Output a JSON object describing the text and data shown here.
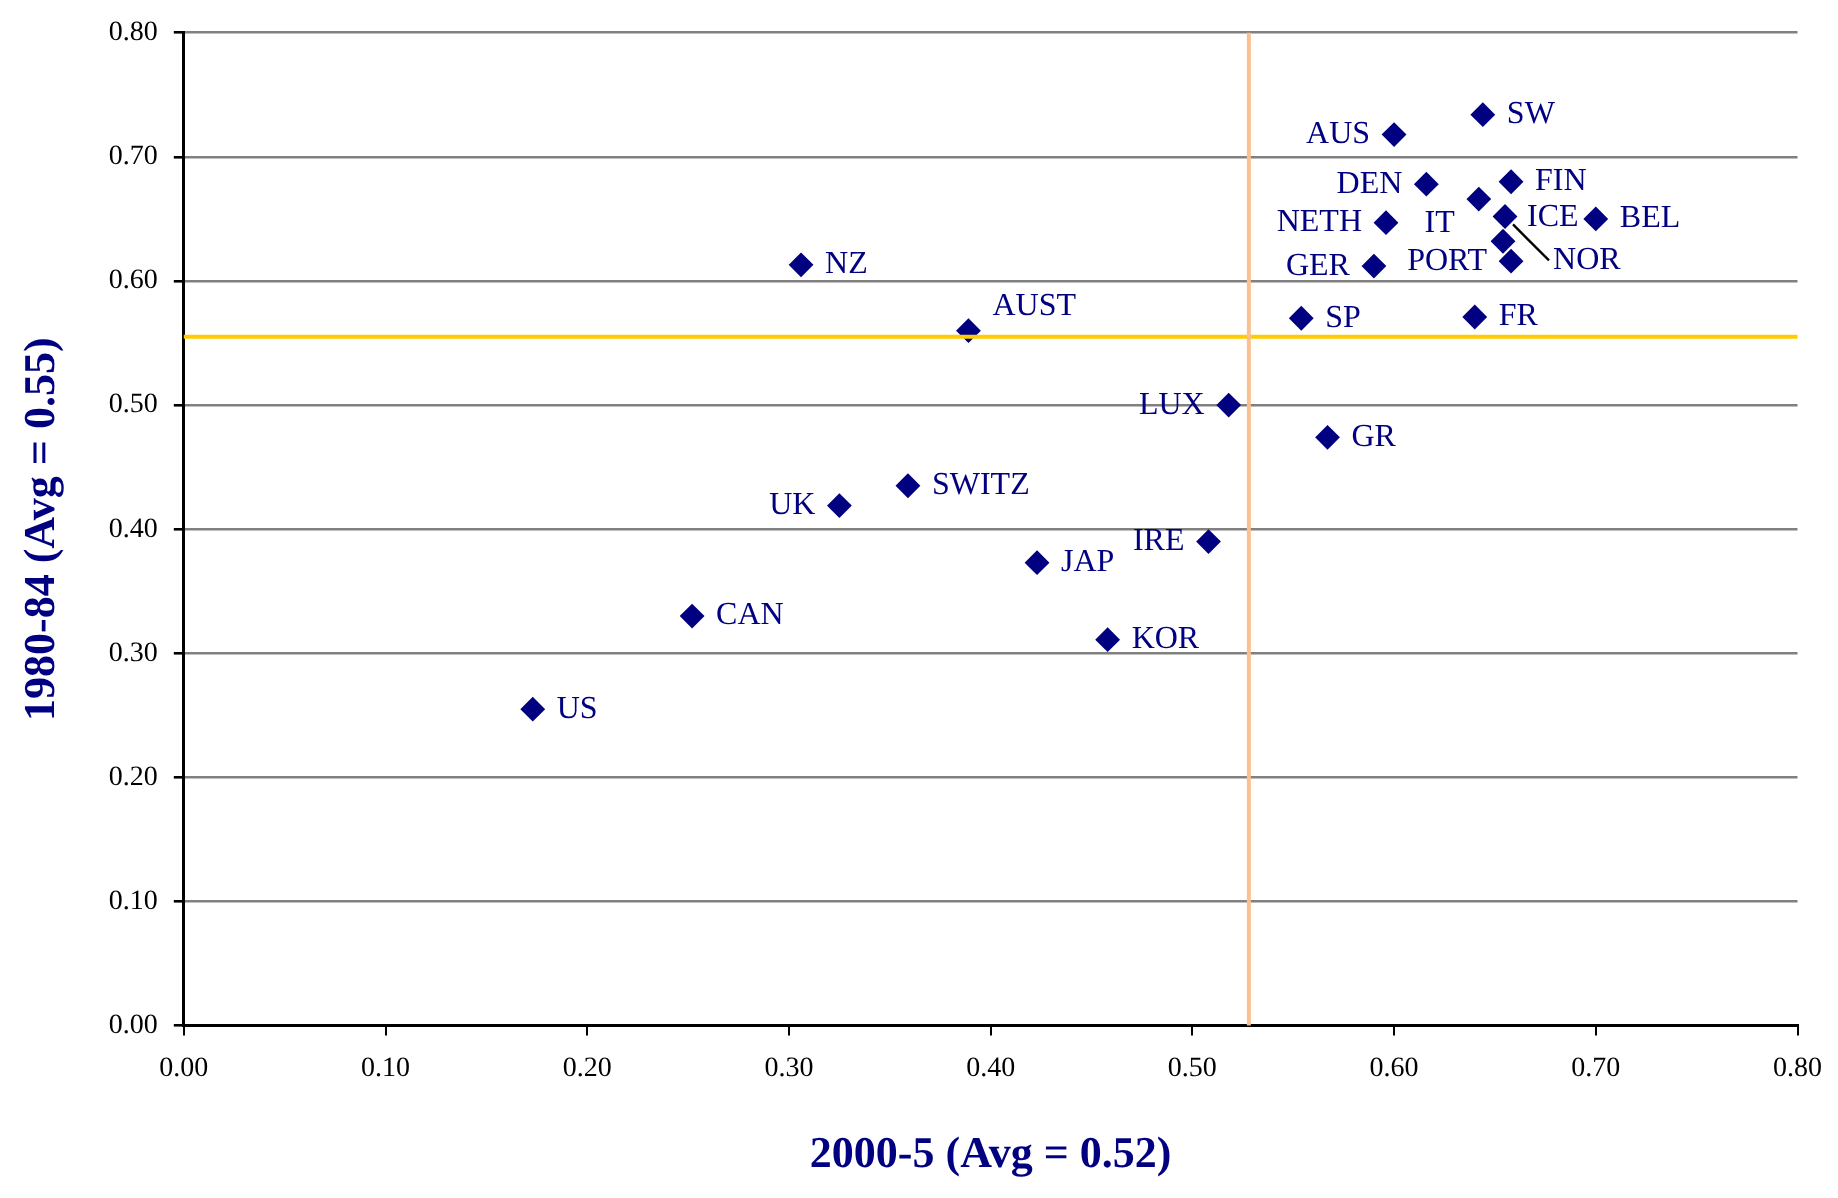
{
  "chart_data": {
    "type": "scatter",
    "xlabel": "2000-5 (Avg = 0.52)",
    "ylabel": "1980-84 (Avg = 0.55)",
    "series": [
      {
        "color": "#000080",
        "x": [
          0.6,
          0.644,
          0.616,
          0.658,
          0.642,
          0.596,
          0.655,
          0.654,
          0.658,
          0.7,
          0.59,
          0.554,
          0.64,
          0.306,
          0.389,
          0.518,
          0.567,
          0.359,
          0.325,
          0.508,
          0.423,
          0.252,
          0.458,
          0.173
        ],
        "values": [
          0.718,
          0.734,
          0.678,
          0.68,
          0.666,
          0.647,
          0.652,
          0.632,
          0.616,
          0.65,
          0.612,
          0.57,
          0.571,
          0.613,
          0.56,
          0.5,
          0.474,
          0.435,
          0.419,
          0.39,
          0.373,
          0.33,
          0.311,
          0.255
        ]
      }
    ],
    "annotations": [
      {
        "text": "AUS",
        "x": 0.6,
        "y": 0.718
      },
      {
        "text": "SW",
        "x": 0.644,
        "y": 0.734
      },
      {
        "text": "DEN",
        "x": 0.616,
        "y": 0.678
      },
      {
        "text": "FIN",
        "x": 0.658,
        "y": 0.68
      },
      {
        "text": "IT",
        "x": 0.642,
        "y": 0.666
      },
      {
        "text": "NETH",
        "x": 0.596,
        "y": 0.647
      },
      {
        "text": "NOR",
        "x": 0.655,
        "y": 0.652
      },
      {
        "text": "ICE",
        "x": 0.654,
        "y": 0.632
      },
      {
        "text": "PORT",
        "x": 0.658,
        "y": 0.616
      },
      {
        "text": "BEL",
        "x": 0.7,
        "y": 0.65
      },
      {
        "text": "GER",
        "x": 0.59,
        "y": 0.612
      },
      {
        "text": "SP",
        "x": 0.554,
        "y": 0.57
      },
      {
        "text": "FR",
        "x": 0.64,
        "y": 0.571
      },
      {
        "text": "NZ",
        "x": 0.306,
        "y": 0.613
      },
      {
        "text": "AUST",
        "x": 0.389,
        "y": 0.56
      },
      {
        "text": "LUX",
        "x": 0.518,
        "y": 0.5
      },
      {
        "text": "GR",
        "x": 0.567,
        "y": 0.474
      },
      {
        "text": "SWITZ",
        "x": 0.359,
        "y": 0.435
      },
      {
        "text": "UK",
        "x": 0.325,
        "y": 0.419
      },
      {
        "text": "IRE",
        "x": 0.508,
        "y": 0.39
      },
      {
        "text": "JAP",
        "x": 0.423,
        "y": 0.373
      },
      {
        "text": "CAN",
        "x": 0.252,
        "y": 0.33
      },
      {
        "text": "KOR",
        "x": 0.458,
        "y": 0.311
      },
      {
        "text": "US",
        "x": 0.173,
        "y": 0.255
      }
    ],
    "ref_lines": [
      {
        "axis": "y",
        "value": 0.555,
        "color": "#ffcc00"
      },
      {
        "axis": "x",
        "value": 0.528,
        "color": "#fac090"
      }
    ],
    "xlim": [
      0,
      0.8
    ],
    "ylim": [
      0,
      0.8
    ],
    "xticks": [
      {
        "value": 0,
        "label": "0.00"
      },
      {
        "value": 0.1,
        "label": "0.10"
      },
      {
        "value": 0.2,
        "label": "0.20"
      },
      {
        "value": 0.3,
        "label": "0.30"
      },
      {
        "value": 0.4,
        "label": "0.40"
      },
      {
        "value": 0.5,
        "label": "0.50"
      },
      {
        "value": 0.6,
        "label": "0.60"
      },
      {
        "value": 0.7,
        "label": "0.70"
      },
      {
        "value": 0.8,
        "label": "0.80"
      }
    ],
    "yticks": [
      {
        "value": 0,
        "label": "0.00"
      },
      {
        "value": 0.1,
        "label": "0.10"
      },
      {
        "value": 0.2,
        "label": "0.20"
      },
      {
        "value": 0.3,
        "label": "0.30"
      },
      {
        "value": 0.4,
        "label": "0.40"
      },
      {
        "value": 0.5,
        "label": "0.50"
      },
      {
        "value": 0.6,
        "label": "0.60"
      },
      {
        "value": 0.7,
        "label": "0.70"
      },
      {
        "value": 0.8,
        "label": "0.80"
      }
    ],
    "grid": "y",
    "legend": false,
    "marker": "diamond"
  }
}
